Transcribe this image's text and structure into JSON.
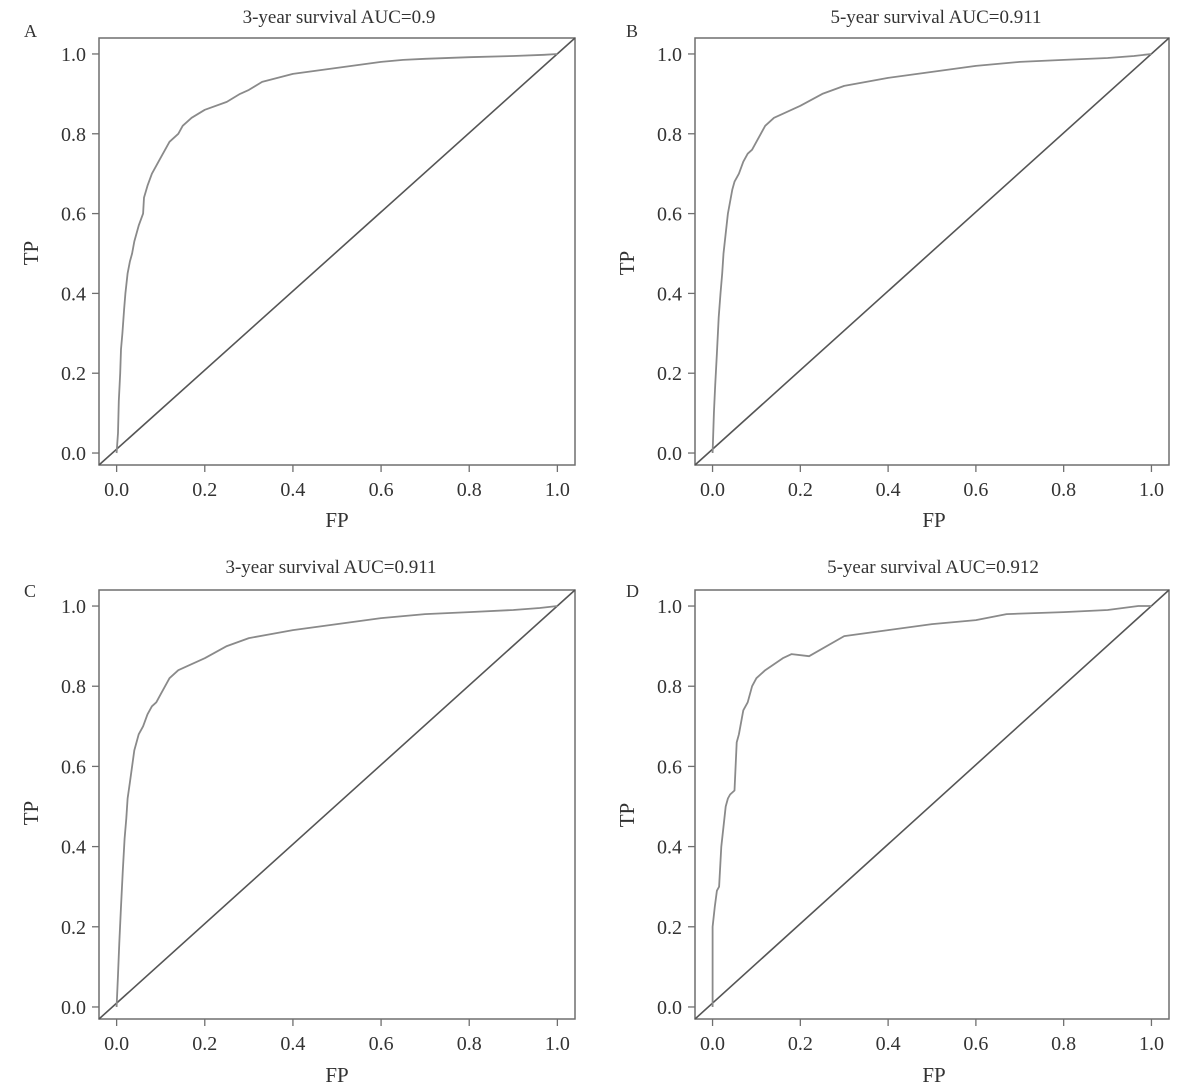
{
  "chart_data": [
    {
      "panel": "A",
      "type": "line",
      "title": "3-year survival AUC=0.9",
      "xlabel": "FP",
      "ylabel": "TP",
      "xlim": [
        -0.04,
        1.04
      ],
      "ylim": [
        -0.03,
        1.04
      ],
      "xticks": [
        "0.0",
        "0.2",
        "0.4",
        "0.6",
        "0.8",
        "1.0"
      ],
      "yticks": [
        "0.0",
        "0.2",
        "0.4",
        "0.6",
        "0.8",
        "1.0"
      ],
      "grid": false,
      "reference_line": "diagonal",
      "series": [
        {
          "color": "#8a8a8a",
          "x": [
            0,
            0.003,
            0.005,
            0.008,
            0.01,
            0.013,
            0.017,
            0.02,
            0.025,
            0.03,
            0.035,
            0.04,
            0.05,
            0.06,
            0.062,
            0.07,
            0.08,
            0.09,
            0.1,
            0.12,
            0.14,
            0.15,
            0.17,
            0.2,
            0.25,
            0.28,
            0.3,
            0.33,
            0.4,
            0.5,
            0.6,
            0.65,
            0.7,
            0.8,
            0.9,
            0.97,
            1.0
          ],
          "y": [
            0,
            0.05,
            0.13,
            0.2,
            0.26,
            0.3,
            0.36,
            0.4,
            0.45,
            0.48,
            0.5,
            0.53,
            0.57,
            0.6,
            0.64,
            0.67,
            0.7,
            0.72,
            0.74,
            0.78,
            0.8,
            0.82,
            0.84,
            0.86,
            0.88,
            0.9,
            0.91,
            0.93,
            0.95,
            0.965,
            0.98,
            0.985,
            0.988,
            0.992,
            0.995,
            0.998,
            1.0
          ]
        }
      ]
    },
    {
      "panel": "B",
      "type": "line",
      "title": "5-year survival AUC=0.911",
      "xlabel": "FP",
      "ylabel": "TP",
      "xlim": [
        -0.04,
        1.04
      ],
      "ylim": [
        -0.03,
        1.04
      ],
      "xticks": [
        "0.0",
        "0.2",
        "0.4",
        "0.6",
        "0.8",
        "1.0"
      ],
      "yticks": [
        "0.0",
        "0.2",
        "0.4",
        "0.6",
        "0.8",
        "1.0"
      ],
      "grid": false,
      "reference_line": "diagonal",
      "series": [
        {
          "color": "#8a8a8a",
          "x": [
            0,
            0.003,
            0.006,
            0.01,
            0.014,
            0.018,
            0.022,
            0.025,
            0.03,
            0.035,
            0.04,
            0.045,
            0.05,
            0.06,
            0.07,
            0.08,
            0.09,
            0.1,
            0.11,
            0.12,
            0.14,
            0.16,
            0.2,
            0.25,
            0.3,
            0.35,
            0.4,
            0.5,
            0.6,
            0.7,
            0.8,
            0.9,
            0.96,
            1.0
          ],
          "y": [
            0,
            0.1,
            0.17,
            0.25,
            0.34,
            0.4,
            0.45,
            0.5,
            0.55,
            0.6,
            0.63,
            0.66,
            0.68,
            0.7,
            0.73,
            0.75,
            0.76,
            0.78,
            0.8,
            0.82,
            0.84,
            0.85,
            0.87,
            0.9,
            0.92,
            0.93,
            0.94,
            0.955,
            0.97,
            0.98,
            0.985,
            0.99,
            0.995,
            1.0
          ]
        }
      ]
    },
    {
      "panel": "C",
      "type": "line",
      "title": "3-year survival AUC=0.911",
      "xlabel": "FP",
      "ylabel": "TP",
      "xlim": [
        -0.04,
        1.04
      ],
      "ylim": [
        -0.03,
        1.04
      ],
      "xticks": [
        "0.0",
        "0.2",
        "0.4",
        "0.6",
        "0.8",
        "1.0"
      ],
      "yticks": [
        "0.0",
        "0.2",
        "0.4",
        "0.6",
        "0.8",
        "1.0"
      ],
      "grid": false,
      "reference_line": "diagonal",
      "series": [
        {
          "color": "#8a8a8a",
          "x": [
            0,
            0.003,
            0.006,
            0.01,
            0.014,
            0.018,
            0.022,
            0.025,
            0.03,
            0.035,
            0.04,
            0.045,
            0.05,
            0.06,
            0.07,
            0.08,
            0.09,
            0.1,
            0.11,
            0.12,
            0.14,
            0.16,
            0.2,
            0.25,
            0.3,
            0.35,
            0.4,
            0.5,
            0.6,
            0.7,
            0.8,
            0.9,
            0.96,
            1.0
          ],
          "y": [
            0,
            0.08,
            0.16,
            0.25,
            0.34,
            0.42,
            0.47,
            0.52,
            0.56,
            0.6,
            0.64,
            0.66,
            0.68,
            0.7,
            0.73,
            0.75,
            0.76,
            0.78,
            0.8,
            0.82,
            0.84,
            0.85,
            0.87,
            0.9,
            0.92,
            0.93,
            0.94,
            0.955,
            0.97,
            0.98,
            0.985,
            0.99,
            0.995,
            1.0
          ]
        }
      ]
    },
    {
      "panel": "D",
      "type": "line",
      "title": "5-year survival AUC=0.912",
      "xlabel": "FP",
      "ylabel": "TP",
      "xlim": [
        -0.04,
        1.04
      ],
      "ylim": [
        -0.03,
        1.04
      ],
      "xticks": [
        "0.0",
        "0.2",
        "0.4",
        "0.6",
        "0.8",
        "1.0"
      ],
      "yticks": [
        "0.0",
        "0.2",
        "0.4",
        "0.6",
        "0.8",
        "1.0"
      ],
      "grid": false,
      "reference_line": "diagonal",
      "series": [
        {
          "color": "#8a8a8a",
          "x": [
            0,
            0,
            0.005,
            0.01,
            0.015,
            0.02,
            0.025,
            0.03,
            0.035,
            0.04,
            0.05,
            0.055,
            0.06,
            0.07,
            0.08,
            0.09,
            0.1,
            0.12,
            0.14,
            0.16,
            0.18,
            0.22,
            0.3,
            0.4,
            0.5,
            0.6,
            0.67,
            0.8,
            0.9,
            0.97,
            1.0
          ],
          "y": [
            0,
            0.2,
            0.25,
            0.29,
            0.3,
            0.4,
            0.45,
            0.5,
            0.52,
            0.53,
            0.54,
            0.66,
            0.68,
            0.74,
            0.76,
            0.8,
            0.82,
            0.84,
            0.855,
            0.87,
            0.88,
            0.875,
            0.925,
            0.94,
            0.955,
            0.965,
            0.98,
            0.985,
            0.99,
            1.0,
            1.0
          ]
        }
      ]
    }
  ]
}
